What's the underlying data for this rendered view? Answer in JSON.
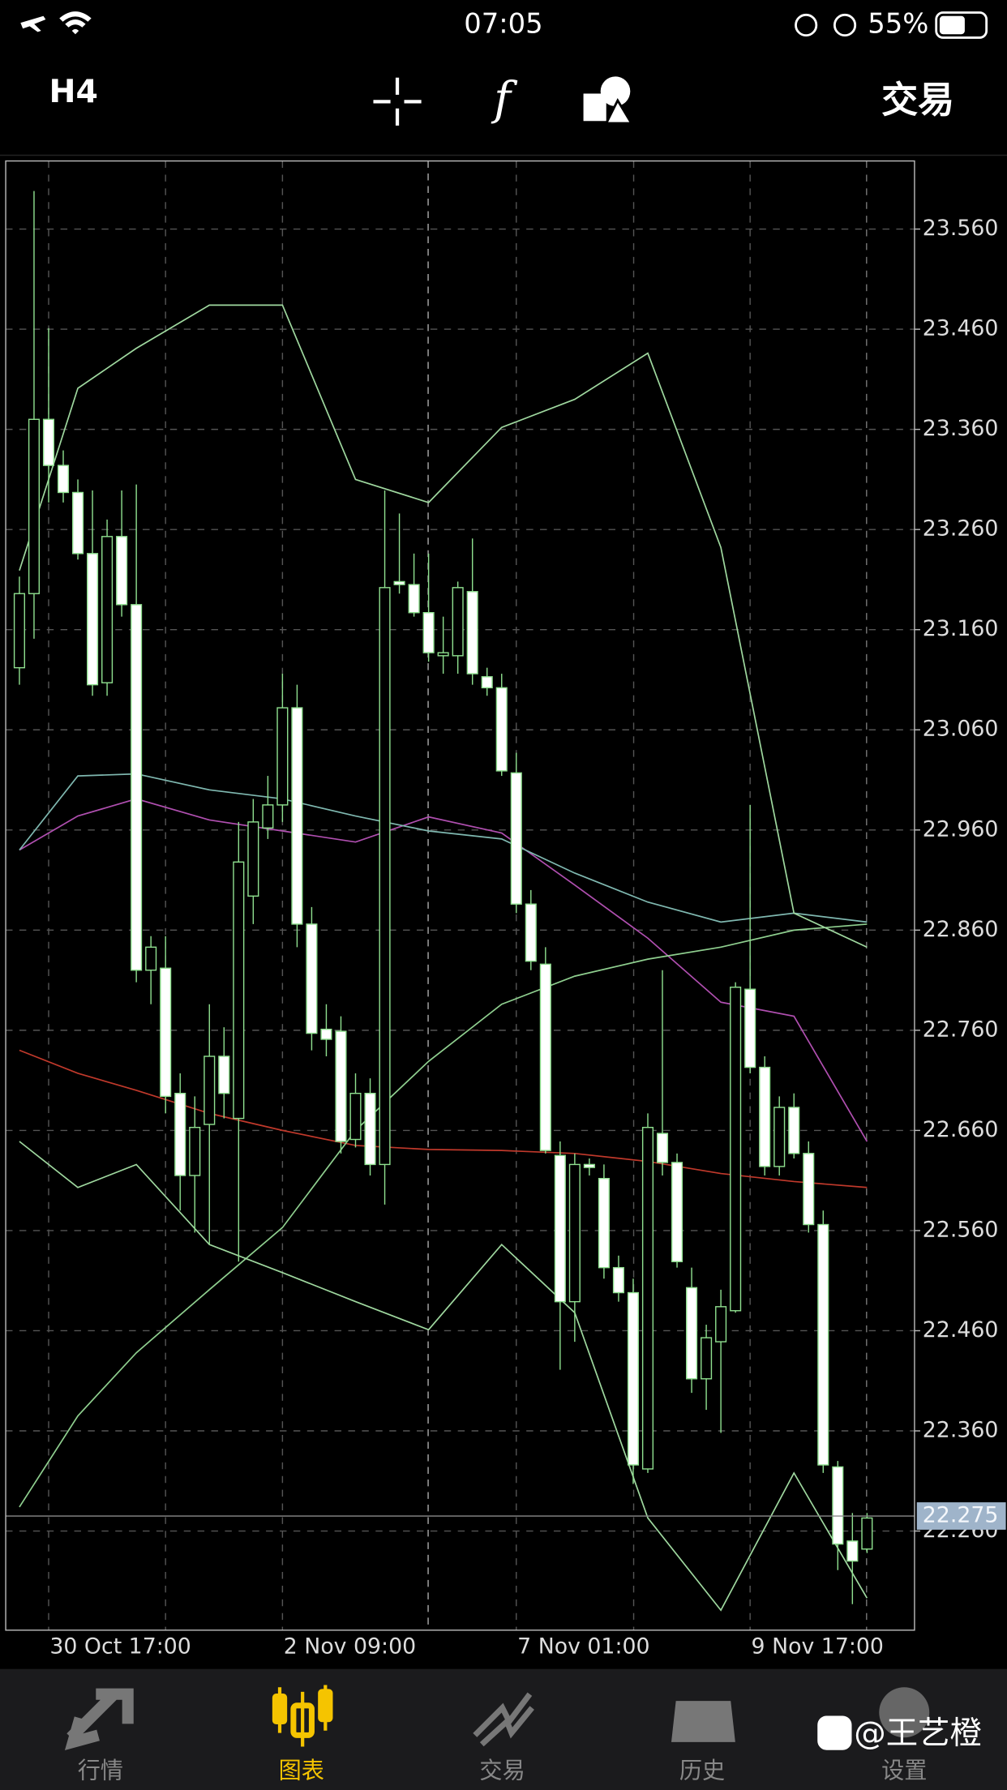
{
  "status_bar": {
    "time": "07:05",
    "battery": "55%"
  },
  "toolbar": {
    "timeframe": "H4",
    "function_icon": "f",
    "trade": "交易"
  },
  "chart_data": {
    "type": "candlestick",
    "categories": [
      null,
      null,
      "30 Oct 17:00",
      null,
      null,
      null,
      null,
      null,
      null,
      null,
      null,
      null,
      null,
      null,
      null,
      null,
      null,
      null,
      "2 Nov 09:00",
      null,
      null,
      null,
      null,
      null,
      null,
      null,
      null,
      null,
      null,
      null,
      null,
      null,
      null,
      null,
      "7 Nov 01:00",
      null,
      null,
      null,
      null,
      null,
      null,
      null,
      null,
      null,
      null,
      null,
      null,
      null,
      null,
      null,
      "9 Nov 17:00",
      null,
      null,
      null,
      null,
      null,
      null,
      null,
      null
    ],
    "open": [
      23.122,
      23.196,
      23.37,
      23.324,
      23.297,
      23.236,
      23.107,
      23.253,
      23.185,
      22.82,
      22.822,
      22.697,
      22.615,
      22.666,
      22.734,
      22.672,
      22.894,
      22.962,
      22.985,
      23.082,
      22.866,
      22.761,
      22.759,
      22.651,
      22.697,
      22.626,
      23.208,
      23.205,
      23.177,
      23.134,
      23.134,
      23.198,
      23.113,
      23.102,
      23.017,
      22.886,
      22.826,
      22.635,
      22.489,
      22.626,
      22.612,
      22.523,
      22.498,
      22.322,
      22.657,
      22.628,
      22.503,
      22.412,
      22.449,
      22.48,
      22.801,
      22.723,
      22.624,
      22.683,
      22.637,
      22.566,
      22.324,
      22.25,
      22.242
    ],
    "high": [
      23.213,
      23.598,
      23.461,
      23.339,
      23.31,
      23.299,
      23.27,
      23.299,
      23.305,
      22.854,
      22.854,
      22.717,
      22.694,
      22.786,
      22.763,
      22.968,
      22.991,
      23.014,
      23.116,
      23.105,
      22.883,
      22.786,
      22.774,
      22.717,
      22.712,
      23.299,
      23.276,
      23.236,
      23.236,
      23.173,
      23.208,
      23.251,
      23.122,
      23.116,
      23.037,
      22.9,
      22.843,
      22.649,
      22.637,
      22.632,
      22.626,
      22.535,
      22.512,
      22.677,
      22.82,
      22.637,
      22.523,
      22.466,
      22.501,
      22.808,
      22.985,
      22.734,
      22.694,
      22.697,
      22.649,
      22.58,
      22.33,
      22.278,
      22.278
    ],
    "low": [
      23.105,
      23.151,
      23.287,
      23.287,
      23.23,
      23.094,
      23.094,
      23.173,
      22.808,
      22.786,
      22.677,
      22.58,
      22.558,
      22.546,
      22.672,
      22.529,
      22.866,
      22.951,
      22.968,
      22.843,
      22.74,
      22.734,
      22.637,
      22.643,
      22.615,
      22.586,
      23.196,
      23.173,
      23.128,
      23.116,
      23.116,
      23.105,
      23.094,
      23.014,
      22.877,
      22.82,
      22.637,
      22.421,
      22.449,
      22.615,
      22.512,
      22.489,
      22.307,
      22.318,
      22.615,
      22.523,
      22.398,
      22.381,
      22.358,
      22.478,
      22.717,
      22.615,
      22.615,
      22.632,
      22.558,
      22.318,
      22.221,
      22.187,
      22.238
    ],
    "close": [
      23.196,
      23.37,
      23.324,
      23.297,
      23.236,
      23.105,
      23.253,
      23.185,
      22.82,
      22.843,
      22.694,
      22.615,
      22.663,
      22.734,
      22.697,
      22.928,
      22.968,
      22.985,
      23.082,
      22.866,
      22.757,
      22.751,
      22.649,
      22.697,
      22.626,
      23.202,
      23.205,
      23.177,
      23.137,
      23.137,
      23.202,
      23.116,
      23.102,
      23.019,
      22.886,
      22.829,
      22.64,
      22.489,
      22.626,
      22.623,
      22.523,
      22.498,
      22.326,
      22.663,
      22.628,
      22.529,
      22.412,
      22.453,
      22.484,
      22.803,
      22.723,
      22.624,
      22.683,
      22.637,
      22.566,
      22.326,
      22.247,
      22.23,
      22.273
    ],
    "up_color": "#000000",
    "down_color": "#ffffff",
    "wick_color": "#8fe08f",
    "lines": [
      {
        "color": "#c0392b",
        "x": [
          0,
          4,
          8,
          13,
          18,
          23,
          28,
          33,
          38,
          43,
          48,
          53,
          58
        ],
        "values": [
          22.74,
          22.717,
          22.7,
          22.677,
          22.66,
          22.645,
          22.641,
          22.64,
          22.637,
          22.629,
          22.617,
          22.609,
          22.603
        ]
      },
      {
        "color": "#b04fb0",
        "x": [
          0,
          4,
          8,
          13,
          18,
          23,
          28,
          33,
          38,
          43,
          48,
          53,
          58
        ],
        "values": [
          22.94,
          22.974,
          22.991,
          22.97,
          22.959,
          22.948,
          22.973,
          22.957,
          22.905,
          22.852,
          22.788,
          22.774,
          22.649
        ]
      },
      {
        "color": "#7fb8b0",
        "x": [
          0,
          4,
          8,
          13,
          18,
          23,
          28,
          33,
          38,
          43,
          48,
          53,
          58
        ],
        "values": [
          22.94,
          23.014,
          23.016,
          23.0,
          22.991,
          22.974,
          22.959,
          22.951,
          22.917,
          22.888,
          22.868,
          22.877,
          22.868
        ]
      },
      {
        "color": "#8fcf8f",
        "x": [
          0,
          4,
          8,
          13,
          18,
          23,
          28,
          33,
          38,
          43,
          48,
          53,
          58
        ],
        "values": [
          22.284,
          22.375,
          22.438,
          22.501,
          22.563,
          22.66,
          22.729,
          22.786,
          22.814,
          22.831,
          22.843,
          22.86,
          22.866
        ]
      },
      {
        "color": "#9fd89f",
        "x": [
          0,
          4,
          8,
          13,
          18,
          23,
          28,
          33,
          38,
          43,
          48,
          53,
          58
        ],
        "values": [
          23.219,
          23.401,
          23.441,
          23.484,
          23.484,
          23.31,
          23.287,
          23.362,
          23.39,
          23.436,
          23.242,
          22.877,
          22.843
        ]
      },
      {
        "color": "#9fd89f",
        "x": [
          0,
          4,
          8,
          13,
          18,
          23,
          28,
          33,
          38,
          43,
          48,
          53,
          58
        ],
        "values": [
          22.649,
          22.603,
          22.626,
          22.546,
          22.518,
          22.489,
          22.461,
          22.546,
          22.478,
          22.273,
          22.181,
          22.318,
          22.193
        ]
      }
    ],
    "ylim": [
      22.161,
      23.628
    ],
    "yticks": [
      {
        "value": 22.26,
        "label": "22.260"
      },
      {
        "value": 22.36,
        "label": "22.360"
      },
      {
        "value": 22.46,
        "label": "22.460"
      },
      {
        "value": 22.56,
        "label": "22.560"
      },
      {
        "value": 22.66,
        "label": "22.660"
      },
      {
        "value": 22.76,
        "label": "22.760"
      },
      {
        "value": 22.86,
        "label": "22.860"
      },
      {
        "value": 22.96,
        "label": "22.960"
      },
      {
        "value": 23.06,
        "label": "23.060"
      },
      {
        "value": 23.16,
        "label": "23.160"
      },
      {
        "value": 23.26,
        "label": "23.260"
      },
      {
        "value": 23.36,
        "label": "23.360"
      },
      {
        "value": 23.46,
        "label": "23.460"
      },
      {
        "value": 23.56,
        "label": "23.560"
      }
    ],
    "grid": true,
    "current_price": 22.275
  },
  "tab_bar": {
    "tabs": [
      "行情",
      "图表",
      "交易",
      "历史",
      "设置"
    ],
    "active": 1,
    "watermark": "@王艺橙"
  }
}
